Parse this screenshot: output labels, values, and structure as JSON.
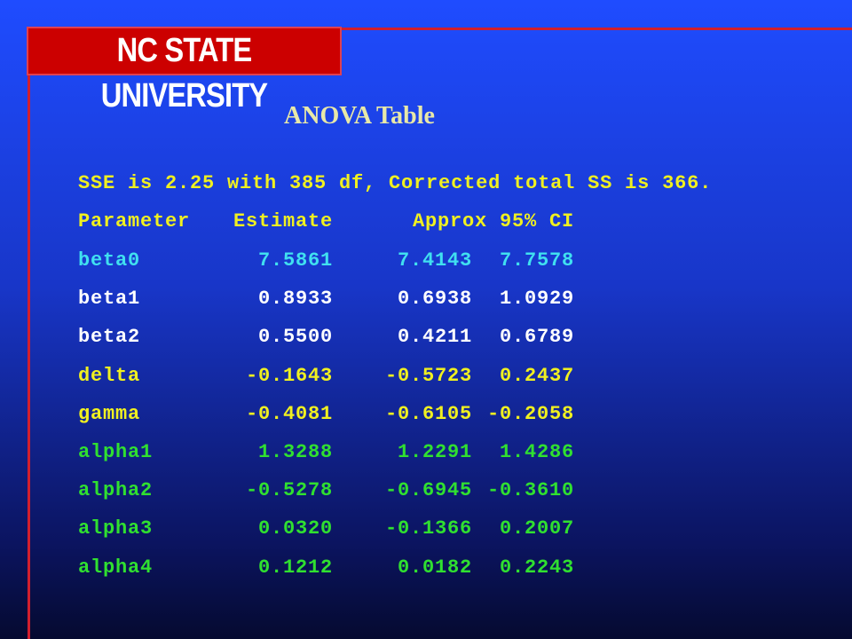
{
  "header": {
    "logo": "NC STATE UNIVERSITY",
    "title": "ANOVA Table"
  },
  "summary": "SSE is 2.25 with 385 df, Corrected total SS is 366.",
  "table": {
    "header": {
      "color": "#f0f020",
      "cells": [
        "Parameter",
        "Estimate",
        "Approx 95% CI"
      ]
    },
    "rows": [
      {
        "color": "#40e0f0",
        "cells": [
          "beta0",
          "7.5861",
          "7.4143",
          "7.7578"
        ]
      },
      {
        "color": "#ffffff",
        "cells": [
          "beta1",
          "0.8933",
          "0.6938",
          "1.0929"
        ]
      },
      {
        "color": "#ffffff",
        "cells": [
          "beta2",
          "0.5500",
          "0.4211",
          "0.6789"
        ]
      },
      {
        "color": "#f0f020",
        "cells": [
          "delta",
          "-0.1643",
          "-0.5723",
          "0.2437"
        ]
      },
      {
        "color": "#f0f020",
        "cells": [
          "gamma",
          "-0.4081",
          "-0.6105",
          "-0.2058"
        ]
      },
      {
        "color": "#30e030",
        "cells": [
          "alpha1",
          "1.3288",
          "1.2291",
          "1.4286"
        ]
      },
      {
        "color": "#30e030",
        "cells": [
          "alpha2",
          "-0.5278",
          "-0.6945",
          "-0.3610"
        ]
      },
      {
        "color": "#30e030",
        "cells": [
          "alpha3",
          "0.0320",
          "-0.1366",
          "0.2007"
        ]
      },
      {
        "color": "#30e030",
        "cells": [
          "alpha4",
          "0.1212",
          "0.0182",
          "0.2243"
        ]
      }
    ]
  }
}
